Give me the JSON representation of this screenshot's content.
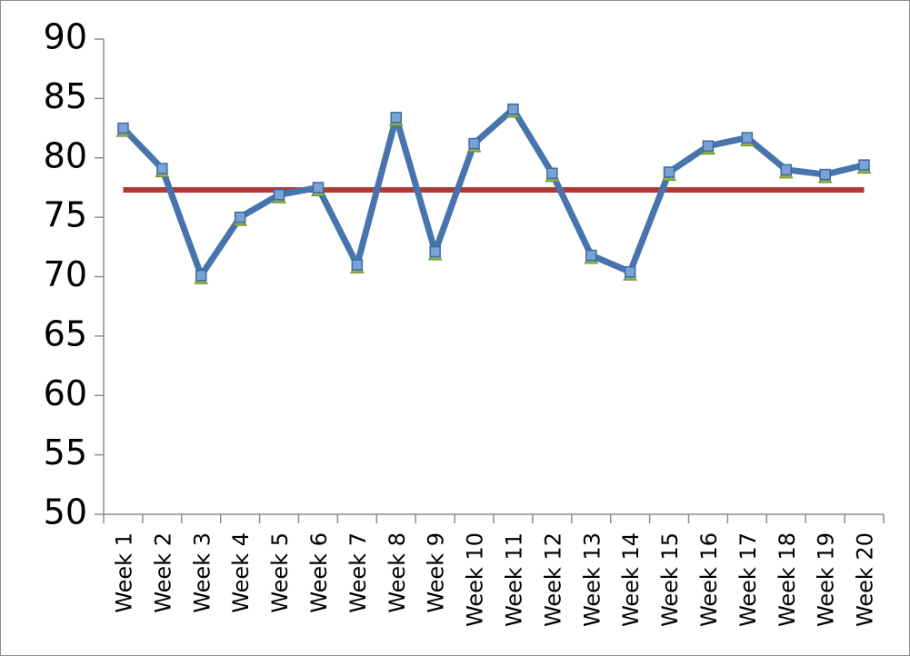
{
  "chart_data": {
    "type": "line",
    "categories": [
      "Week 1",
      "Week 2",
      "Week 3",
      "Week 4",
      "Week 5",
      "Week 6",
      "Week 7",
      "Week 8",
      "Week 9",
      "Week 10",
      "Week 11",
      "Week 12",
      "Week 13",
      "Week 14",
      "Week 15",
      "Week 16",
      "Week 17",
      "Week 18",
      "Week 19",
      "Week 20"
    ],
    "series": [
      {
        "values": [
          82.5,
          79.1,
          70.1,
          75.0,
          76.9,
          77.5,
          71.0,
          83.4,
          72.1,
          81.2,
          84.1,
          78.7,
          71.8,
          70.4,
          78.8,
          81.0,
          81.7,
          79.0,
          78.6,
          79.4
        ],
        "color": "#4774ac",
        "marker": "square",
        "marker_color": "#7aa3d4"
      },
      {
        "values": [
          77.3,
          77.3,
          77.3,
          77.3,
          77.3,
          77.3,
          77.3,
          77.3,
          77.3,
          77.3,
          77.3,
          77.3,
          77.3,
          77.3,
          77.3,
          77.3,
          77.3,
          77.3,
          77.3,
          77.3
        ],
        "color": "#b03a35",
        "marker": "none"
      }
    ],
    "ylim": [
      50,
      90
    ],
    "yticks": [
      50,
      55,
      60,
      65,
      70,
      75,
      80,
      85,
      90
    ],
    "title": "",
    "xlabel": "",
    "ylabel": "",
    "grid": false,
    "legend": "none"
  }
}
